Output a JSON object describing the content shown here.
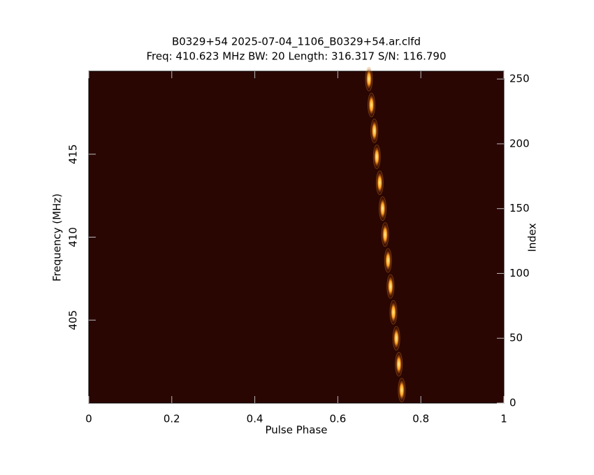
{
  "chart_data": {
    "type": "scatter",
    "title": "B0329+54 2025-07-04_1106_B0329+54.ar.clfd",
    "subtitle": "Freq: 410.623 MHz BW: 20 Length: 316.317 S/N: 116.790",
    "x_label": "Pulse Phase",
    "y_label": "Frequency (MHz)",
    "y2_label": "Index",
    "xlim": [
      0,
      1
    ],
    "xticks": [
      0,
      0.2,
      0.4,
      0.6,
      0.8,
      1
    ],
    "ylim": [
      400,
      420
    ],
    "yticks": [
      405,
      410,
      415
    ],
    "y2lim": [
      0,
      256
    ],
    "y2ticks": [
      0,
      50,
      100,
      150,
      200,
      250
    ],
    "series": [
      {
        "color": "#ff9a1a",
        "axis": "y2",
        "x": [
          0.754,
          0.747,
          0.741,
          0.734,
          0.727,
          0.721,
          0.714,
          0.708,
          0.701,
          0.694,
          0.688,
          0.681,
          0.675
        ],
        "values": [
          10,
          30,
          50,
          70,
          90,
          110,
          130,
          150,
          170,
          190,
          210,
          230,
          250
        ]
      }
    ]
  }
}
